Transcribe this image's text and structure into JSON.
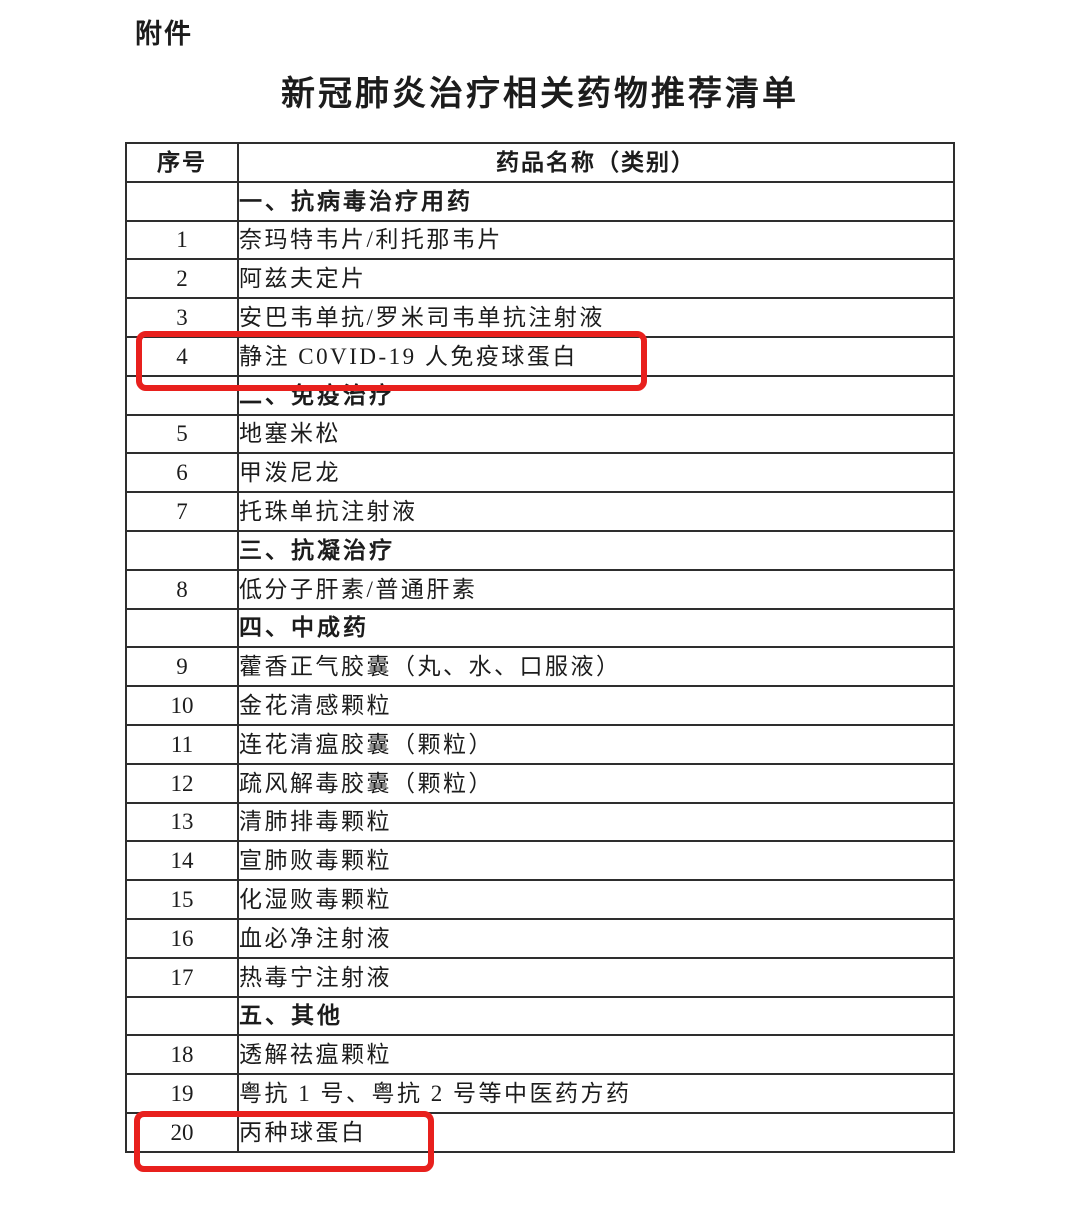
{
  "page": {
    "attachment_label": "附件",
    "title": "新冠肺炎治疗相关药物推荐清单"
  },
  "table": {
    "headers": {
      "index": "序号",
      "name": "药品名称（类别）"
    },
    "rows": [
      {
        "type": "section",
        "index": "",
        "name": "一、抗病毒治疗用药"
      },
      {
        "type": "item",
        "index": "1",
        "name": "奈玛特韦片/利托那韦片"
      },
      {
        "type": "item",
        "index": "2",
        "name": "阿兹夫定片"
      },
      {
        "type": "item",
        "index": "3",
        "name": "安巴韦单抗/罗米司韦单抗注射液"
      },
      {
        "type": "item",
        "index": "4",
        "name": "静注 C0VID-19 人免疫球蛋白",
        "highlighted": true
      },
      {
        "type": "section",
        "index": "",
        "name": "二、免疫治疗"
      },
      {
        "type": "item",
        "index": "5",
        "name": "地塞米松"
      },
      {
        "type": "item",
        "index": "6",
        "name": "甲泼尼龙"
      },
      {
        "type": "item",
        "index": "7",
        "name": "托珠单抗注射液"
      },
      {
        "type": "section",
        "index": "",
        "name": "三、抗凝治疗"
      },
      {
        "type": "item",
        "index": "8",
        "name": "低分子肝素/普通肝素"
      },
      {
        "type": "section",
        "index": "",
        "name": "四、中成药"
      },
      {
        "type": "item",
        "index": "9",
        "name": "藿香正气胶囊（丸、水、口服液）"
      },
      {
        "type": "item",
        "index": "10",
        "name": "金花清感颗粒"
      },
      {
        "type": "item",
        "index": "11",
        "name": "连花清瘟胶囊（颗粒）"
      },
      {
        "type": "item",
        "index": "12",
        "name": "疏风解毒胶囊（颗粒）"
      },
      {
        "type": "item",
        "index": "13",
        "name": "清肺排毒颗粒"
      },
      {
        "type": "item",
        "index": "14",
        "name": "宣肺败毒颗粒"
      },
      {
        "type": "item",
        "index": "15",
        "name": "化湿败毒颗粒"
      },
      {
        "type": "item",
        "index": "16",
        "name": "血必净注射液"
      },
      {
        "type": "item",
        "index": "17",
        "name": "热毒宁注射液"
      },
      {
        "type": "section",
        "index": "",
        "name": "五、其他"
      },
      {
        "type": "item",
        "index": "18",
        "name": "透解祛瘟颗粒"
      },
      {
        "type": "item",
        "index": "19",
        "name": "粤抗 1 号、粤抗 2 号等中医药方药"
      },
      {
        "type": "item",
        "index": "20",
        "name": "丙种球蛋白",
        "highlighted": true
      }
    ]
  },
  "highlight": {
    "color": "#e8201d"
  }
}
